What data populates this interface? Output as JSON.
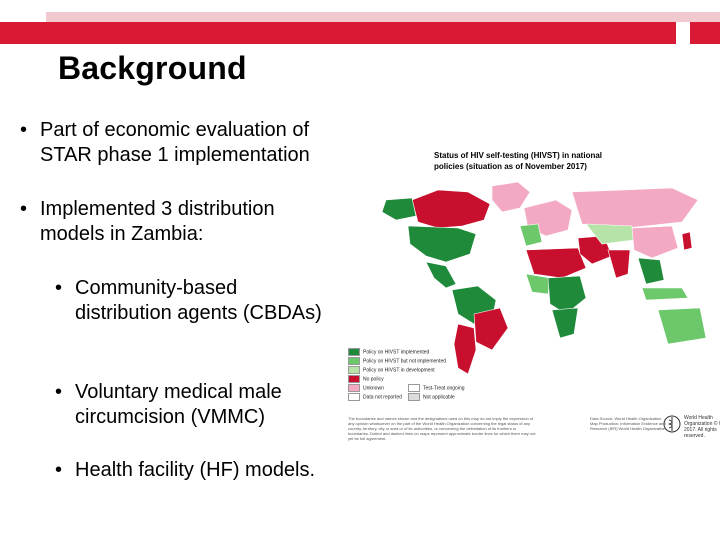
{
  "slide": {
    "title": "Background",
    "bullets": [
      {
        "text": "Part of economic evaluation of STAR phase 1 implementation"
      },
      {
        "text": "Implemented 3 distribution models in Zambia:"
      },
      {
        "text": "Community-based distribution agents (CBDAs)"
      },
      {
        "text": "Voluntary  medical male circumcision (VMMC)"
      },
      {
        "text": "Health facility (HF) models."
      }
    ],
    "bullet_glyph": "•"
  },
  "map": {
    "title": "Status of HIV self-testing (HIVST) in national policies (situation as of November 2017)",
    "legend": [
      {
        "label": "Policy on HIVST implemented",
        "color": "#1f8a3a"
      },
      {
        "label": "Policy on HIVST but not implemented",
        "color": "#6cc86a"
      },
      {
        "label": "Policy on HIVST in development",
        "color": "#b6e3a8"
      },
      {
        "label": "No policy",
        "color": "#c8102e"
      },
      {
        "label": "Unknown",
        "color": "#f3a9c3"
      },
      {
        "label": "Data not reported",
        "color": "#ffffff"
      },
      {
        "label": "Test-Treat ongoing",
        "color": "#ffffff"
      },
      {
        "label": "Not applicable",
        "color": "#dcdcdc"
      }
    ],
    "footnote": "The boundaries and names shown and the designations used on this map do not imply the expression of any opinion whatsoever on the part of the World Health Organization concerning the legal status of any country, territory, city or area or of its authorities, or concerning the delimitation of its frontiers or boundaries. Dotted and dashed lines on maps represent approximate border lines for which there may not yet be full agreement.",
    "source": "Data Source: World Health Organization Map Production: Information Evidence and Research (IER) World Health Organization",
    "who": "World Health Organization © WHO 2017. All rights reserved."
  },
  "colors": {
    "accent_red": "#d91a34",
    "accent_pink": "#f2c9ce"
  }
}
